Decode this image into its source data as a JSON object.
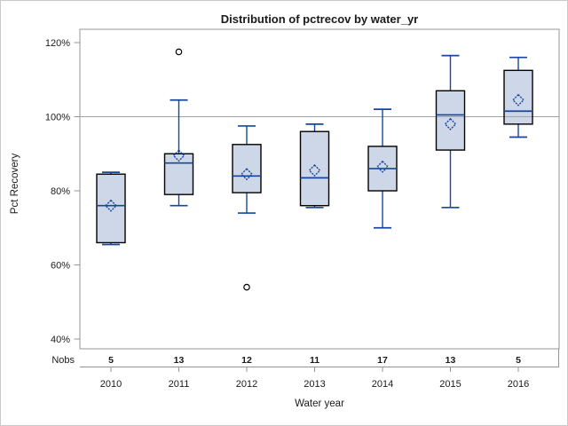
{
  "figure": {
    "title": "Distribution of pctrecov by water_yr",
    "y_axis_label": "Pct Recovery",
    "x_axis_label": "Water year",
    "nobs_label": "Nobs"
  },
  "chart_data": {
    "type": "boxplot",
    "title": "Distribution of pctrecov by water_yr",
    "xlabel": "Water year",
    "ylabel": "Pct Recovery",
    "categories": [
      "2010",
      "2011",
      "2012",
      "2013",
      "2014",
      "2015",
      "2016"
    ],
    "nobs": [
      5,
      13,
      12,
      11,
      17,
      13,
      5
    ],
    "y_ticks": [
      40,
      60,
      80,
      100,
      120
    ],
    "y_tick_labels": [
      "40%",
      "60%",
      "80%",
      "100%",
      "120%"
    ],
    "ylim": [
      37.5,
      123.5
    ],
    "reference_line": 100,
    "grid": false,
    "legend": false,
    "series": [
      {
        "category": "2010",
        "n": 5,
        "min": 65.5,
        "q1": 66,
        "median": 76,
        "q3": 84.5,
        "max": 85,
        "mean": 76,
        "outliers": []
      },
      {
        "category": "2011",
        "n": 13,
        "min": 76,
        "q1": 79,
        "median": 87.5,
        "q3": 90,
        "max": 104.5,
        "mean": 89.5,
        "outliers": [
          117.5
        ]
      },
      {
        "category": "2012",
        "n": 12,
        "min": 74,
        "q1": 79.5,
        "median": 84,
        "q3": 92.5,
        "max": 97.5,
        "mean": 84.5,
        "outliers": [
          54
        ]
      },
      {
        "category": "2013",
        "n": 11,
        "min": 75.5,
        "q1": 76,
        "median": 83.5,
        "q3": 96,
        "max": 98,
        "mean": 85.5,
        "outliers": []
      },
      {
        "category": "2014",
        "n": 17,
        "min": 70,
        "q1": 80,
        "median": 86,
        "q3": 92,
        "max": 102,
        "mean": 86.5,
        "outliers": []
      },
      {
        "category": "2015",
        "n": 13,
        "min": 75.5,
        "q1": 91,
        "median": 100.5,
        "q3": 107,
        "max": 116.5,
        "mean": 98,
        "outliers": []
      },
      {
        "category": "2016",
        "n": 5,
        "min": 94.5,
        "q1": 98,
        "median": 101.5,
        "q3": 112.5,
        "max": 116,
        "mean": 104.5,
        "outliers": []
      }
    ],
    "colors": {
      "box_fill": "#cdd7e7",
      "box_border": "#000000",
      "line_blue": "#17469e",
      "outlier": "#000000",
      "ref_line": "#a3a3a3",
      "frame": "#949494",
      "text": "#1a1a1a",
      "background": "#ffffff",
      "outer_border": "#c9c9c9"
    }
  }
}
